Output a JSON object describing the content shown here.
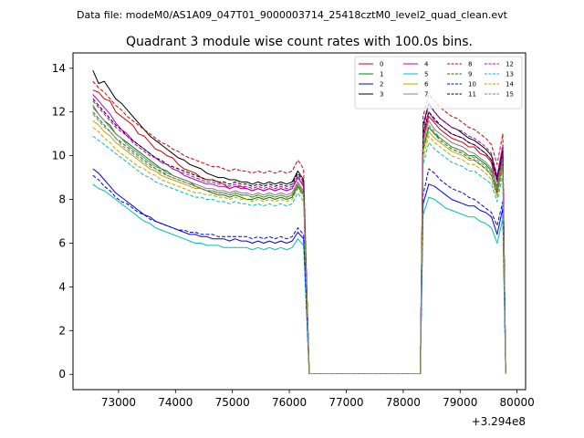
{
  "suptitle": "Data file: modeM0/AS1A09_047T01_9000003714_25418cztM0_level2_quad_clean.evt",
  "chart_data": {
    "type": "line",
    "title": "Quadrant 3 module wise count rates with 100.0s bins.",
    "xlabel": "",
    "ylabel": "",
    "x_offset_label": "+3.294e8",
    "xlim": [
      72200,
      80150
    ],
    "ylim": [
      -0.7,
      14.7
    ],
    "xticks": [
      73000,
      74000,
      75000,
      76000,
      77000,
      78000,
      79000,
      80000
    ],
    "xtick_labels": [
      "73000",
      "74000",
      "75000",
      "76000",
      "77000",
      "78000",
      "79000",
      "80000"
    ],
    "yticks": [
      0,
      2,
      4,
      6,
      8,
      10,
      12,
      14
    ],
    "ytick_labels": [
      "0",
      "2",
      "4",
      "6",
      "8",
      "10",
      "12",
      "14"
    ],
    "legend_position": "top-right",
    "segments": [
      {
        "start": 72550,
        "step": 100,
        "count": 38
      },
      {
        "start": 78350,
        "step": 100,
        "count": 15
      }
    ],
    "gap": {
      "x_start": 76350,
      "x_end": 78300,
      "value": 0.03
    },
    "series": [
      {
        "name": "0",
        "color": "#d00000",
        "dash": "solid",
        "seg1": [
          13.0,
          12.9,
          12.6,
          12.5,
          12.0,
          11.8,
          11.6,
          11.4,
          11.0,
          10.9,
          10.6,
          10.3,
          10.2,
          10.0,
          9.9,
          9.6,
          9.4,
          9.3,
          9.2,
          9.0,
          8.9,
          8.9,
          8.8,
          8.7,
          8.5,
          8.6,
          8.6,
          8.5,
          8.4,
          8.5,
          8.4,
          8.5,
          8.4,
          8.5,
          8.4,
          8.5,
          9.0,
          8.6
        ],
        "seg2": [
          10.8,
          11.8,
          11.5,
          11.2,
          11.0,
          10.8,
          10.7,
          10.6,
          10.4,
          10.4,
          10.1,
          10.0,
          9.7,
          8.3,
          10.2
        ]
      },
      {
        "name": "1",
        "color": "#008000",
        "dash": "solid",
        "seg1": [
          12.3,
          11.9,
          11.6,
          11.4,
          11.0,
          10.8,
          10.6,
          10.4,
          10.2,
          10.0,
          9.8,
          9.6,
          9.4,
          9.3,
          9.1,
          9.0,
          8.9,
          8.8,
          8.6,
          8.5,
          8.4,
          8.3,
          8.2,
          8.2,
          8.1,
          8.2,
          8.1,
          8.0,
          8.0,
          8.1,
          8.0,
          8.1,
          8.0,
          8.1,
          8.0,
          8.1,
          8.6,
          8.2
        ],
        "seg2": [
          10.4,
          11.3,
          11.0,
          10.8,
          10.6,
          10.4,
          10.3,
          10.2,
          10.0,
          10.0,
          9.8,
          9.6,
          9.3,
          8.6,
          9.8
        ]
      },
      {
        "name": "2",
        "color": "#0000ee",
        "dash": "solid",
        "seg1": [
          9.4,
          9.2,
          8.9,
          8.6,
          8.3,
          8.1,
          7.9,
          7.7,
          7.5,
          7.3,
          7.2,
          7.0,
          6.9,
          6.8,
          6.7,
          6.6,
          6.5,
          6.4,
          6.4,
          6.3,
          6.3,
          6.2,
          6.2,
          6.2,
          6.1,
          6.2,
          6.1,
          6.1,
          6.0,
          6.1,
          6.0,
          6.1,
          6.0,
          6.1,
          6.0,
          6.1,
          6.5,
          6.2
        ],
        "seg2": [
          7.8,
          8.7,
          8.6,
          8.4,
          8.2,
          8.0,
          7.9,
          7.8,
          7.7,
          7.7,
          7.5,
          7.4,
          7.2,
          6.4,
          7.6
        ]
      },
      {
        "name": "3",
        "color": "#000000",
        "dash": "solid",
        "seg1": [
          13.9,
          13.3,
          13.4,
          13.0,
          12.6,
          12.4,
          12.1,
          11.8,
          11.5,
          11.2,
          10.9,
          10.7,
          10.5,
          10.3,
          10.1,
          9.9,
          9.8,
          9.6,
          9.5,
          9.4,
          9.2,
          9.1,
          9.0,
          9.0,
          8.9,
          8.9,
          8.8,
          8.8,
          8.7,
          8.8,
          8.7,
          8.8,
          8.7,
          8.8,
          8.7,
          8.8,
          9.3,
          8.9
        ],
        "seg2": [
          11.4,
          12.4,
          12.0,
          11.7,
          11.5,
          11.3,
          11.2,
          11.0,
          10.8,
          10.7,
          10.5,
          10.3,
          10.0,
          9.0,
          10.4
        ]
      },
      {
        "name": "4",
        "color": "#bf00bf",
        "dash": "solid",
        "seg1": [
          12.8,
          12.5,
          12.2,
          11.9,
          11.5,
          11.2,
          11.0,
          10.7,
          10.5,
          10.3,
          10.1,
          9.9,
          9.7,
          9.6,
          9.4,
          9.3,
          9.1,
          9.0,
          8.9,
          8.8,
          8.7,
          8.7,
          8.6,
          8.6,
          8.5,
          8.6,
          8.5,
          8.5,
          8.4,
          8.5,
          8.4,
          8.5,
          8.4,
          8.5,
          8.4,
          8.5,
          9.0,
          8.6
        ],
        "seg2": [
          11.0,
          12.0,
          11.6,
          11.4,
          11.2,
          11.0,
          10.9,
          10.8,
          10.6,
          10.5,
          10.3,
          10.1,
          9.8,
          8.8,
          10.2
        ]
      },
      {
        "name": "5",
        "color": "#00bfbf",
        "dash": "solid",
        "seg1": [
          8.7,
          8.5,
          8.4,
          8.2,
          8.0,
          7.8,
          7.6,
          7.4,
          7.2,
          7.0,
          6.9,
          6.7,
          6.6,
          6.5,
          6.4,
          6.3,
          6.2,
          6.1,
          6.0,
          6.0,
          5.9,
          5.9,
          5.9,
          5.8,
          5.8,
          5.8,
          5.8,
          5.8,
          5.7,
          5.8,
          5.7,
          5.8,
          5.7,
          5.8,
          5.7,
          5.8,
          6.2,
          5.9
        ],
        "seg2": [
          7.3,
          8.1,
          8.0,
          7.8,
          7.6,
          7.5,
          7.4,
          7.3,
          7.2,
          7.2,
          7.0,
          6.9,
          6.7,
          6.0,
          7.1
        ]
      },
      {
        "name": "6",
        "color": "#c8a000",
        "dash": "solid",
        "seg1": [
          11.6,
          11.4,
          11.1,
          10.9,
          10.6,
          10.4,
          10.2,
          10.0,
          9.8,
          9.6,
          9.4,
          9.3,
          9.1,
          9.0,
          8.9,
          8.8,
          8.7,
          8.6,
          8.5,
          8.5,
          8.4,
          8.4,
          8.3,
          8.3,
          8.2,
          8.3,
          8.2,
          8.2,
          8.1,
          8.2,
          8.1,
          8.2,
          8.1,
          8.2,
          8.1,
          8.2,
          8.7,
          8.3
        ],
        "seg2": [
          10.2,
          11.1,
          10.8,
          10.6,
          10.4,
          10.2,
          10.1,
          10.0,
          9.8,
          9.8,
          9.6,
          9.4,
          9.1,
          8.2,
          9.5
        ]
      },
      {
        "name": "7",
        "color": "#808080",
        "dash": "solid",
        "seg1": [
          12.2,
          11.9,
          11.6,
          11.3,
          11.0,
          10.8,
          10.5,
          10.3,
          10.1,
          9.9,
          9.7,
          9.5,
          9.4,
          9.2,
          9.1,
          9.0,
          8.9,
          8.8,
          8.7,
          8.6,
          8.5,
          8.5,
          8.4,
          8.4,
          8.3,
          8.4,
          8.3,
          8.3,
          8.2,
          8.3,
          8.2,
          8.3,
          8.2,
          8.3,
          8.2,
          8.3,
          8.8,
          8.4
        ],
        "seg2": [
          10.6,
          11.6,
          11.2,
          11.0,
          10.8,
          10.6,
          10.5,
          10.4,
          10.2,
          10.1,
          9.9,
          9.7,
          9.4,
          8.5,
          9.8
        ]
      },
      {
        "name": "8",
        "color": "#d00000",
        "dash": "dashed",
        "seg1": [
          13.4,
          13.1,
          12.9,
          12.6,
          12.3,
          12.1,
          11.8,
          11.6,
          11.4,
          11.2,
          11.0,
          10.8,
          10.6,
          10.5,
          10.3,
          10.2,
          10.0,
          9.9,
          9.8,
          9.7,
          9.6,
          9.5,
          9.5,
          9.4,
          9.3,
          9.4,
          9.3,
          9.3,
          9.2,
          9.3,
          9.2,
          9.3,
          9.2,
          9.3,
          9.2,
          9.3,
          9.8,
          9.4
        ],
        "seg2": [
          11.8,
          12.8,
          12.5,
          12.2,
          12.0,
          11.8,
          11.7,
          11.5,
          11.3,
          11.2,
          11.0,
          10.8,
          10.5,
          9.6,
          11.0
        ]
      },
      {
        "name": "9",
        "color": "#008000",
        "dash": "dashed",
        "seg1": [
          12.0,
          11.7,
          11.4,
          11.1,
          10.8,
          10.6,
          10.4,
          10.2,
          10.0,
          9.8,
          9.6,
          9.4,
          9.3,
          9.1,
          9.0,
          8.9,
          8.8,
          8.7,
          8.6,
          8.5,
          8.4,
          8.4,
          8.3,
          8.3,
          8.2,
          8.3,
          8.2,
          8.2,
          8.1,
          8.2,
          8.1,
          8.2,
          8.1,
          8.2,
          8.1,
          8.2,
          8.7,
          8.3
        ],
        "seg2": [
          10.3,
          11.3,
          11.0,
          10.7,
          10.5,
          10.3,
          10.2,
          10.1,
          9.9,
          9.8,
          9.6,
          9.4,
          9.1,
          8.3,
          9.6
        ]
      },
      {
        "name": "10",
        "color": "#0000ee",
        "dash": "dashed",
        "seg1": [
          9.1,
          8.9,
          8.6,
          8.4,
          8.1,
          7.9,
          7.8,
          7.6,
          7.4,
          7.3,
          7.1,
          7.0,
          6.9,
          6.8,
          6.7,
          6.6,
          6.6,
          6.5,
          6.5,
          6.4,
          6.4,
          6.4,
          6.3,
          6.3,
          6.3,
          6.3,
          6.3,
          6.3,
          6.2,
          6.3,
          6.2,
          6.3,
          6.2,
          6.3,
          6.2,
          6.3,
          6.7,
          6.4
        ],
        "seg2": [
          8.2,
          9.4,
          9.2,
          8.9,
          8.7,
          8.5,
          8.4,
          8.3,
          8.1,
          8.0,
          7.8,
          7.6,
          7.4,
          6.8,
          7.9
        ]
      },
      {
        "name": "11",
        "color": "#000000",
        "dash": "dashed",
        "seg1": [
          12.6,
          12.3,
          12.0,
          11.7,
          11.4,
          11.2,
          10.9,
          10.7,
          10.5,
          10.3,
          10.1,
          9.9,
          9.8,
          9.6,
          9.5,
          9.4,
          9.3,
          9.2,
          9.1,
          9.0,
          8.9,
          8.9,
          8.8,
          8.8,
          8.7,
          8.8,
          8.7,
          8.7,
          8.6,
          8.7,
          8.6,
          8.7,
          8.6,
          8.7,
          8.6,
          8.7,
          9.2,
          8.8
        ],
        "seg2": [
          11.0,
          12.0,
          11.7,
          11.4,
          11.2,
          11.0,
          10.9,
          10.8,
          10.6,
          10.5,
          10.3,
          10.1,
          9.8,
          8.9,
          10.3
        ]
      },
      {
        "name": "12",
        "color": "#bf00bf",
        "dash": "dashed",
        "seg1": [
          12.5,
          12.2,
          11.9,
          11.6,
          11.3,
          11.1,
          10.9,
          10.6,
          10.4,
          10.2,
          10.0,
          9.9,
          9.7,
          9.6,
          9.4,
          9.3,
          9.2,
          9.1,
          9.0,
          8.9,
          8.8,
          8.8,
          8.7,
          8.7,
          8.6,
          8.7,
          8.6,
          8.6,
          8.5,
          8.6,
          8.5,
          8.6,
          8.5,
          8.6,
          8.5,
          8.6,
          9.1,
          8.7
        ],
        "seg2": [
          11.2,
          12.3,
          12.0,
          11.7,
          11.5,
          11.3,
          11.2,
          11.1,
          10.9,
          10.8,
          10.6,
          10.4,
          10.1,
          9.1,
          10.5
        ]
      },
      {
        "name": "13",
        "color": "#00bfbf",
        "dash": "dashed",
        "seg1": [
          10.9,
          10.7,
          10.5,
          10.3,
          10.1,
          9.9,
          9.7,
          9.5,
          9.3,
          9.1,
          9.0,
          8.8,
          8.7,
          8.6,
          8.5,
          8.4,
          8.3,
          8.2,
          8.1,
          8.1,
          8.0,
          8.0,
          7.9,
          7.9,
          7.8,
          7.9,
          7.8,
          7.8,
          7.7,
          7.8,
          7.7,
          7.8,
          7.7,
          7.8,
          7.7,
          7.8,
          8.3,
          7.9
        ],
        "seg2": [
          9.6,
          10.6,
          10.3,
          10.1,
          9.9,
          9.7,
          9.6,
          9.5,
          9.3,
          9.3,
          9.1,
          8.9,
          8.7,
          7.9,
          9.1
        ]
      },
      {
        "name": "14",
        "color": "#c8a000",
        "dash": "dashed",
        "seg1": [
          11.3,
          11.1,
          10.8,
          10.6,
          10.3,
          10.1,
          9.9,
          9.7,
          9.5,
          9.4,
          9.2,
          9.1,
          8.9,
          8.8,
          8.7,
          8.6,
          8.5,
          8.4,
          8.3,
          8.3,
          8.2,
          8.2,
          8.1,
          8.1,
          8.0,
          8.1,
          8.0,
          8.0,
          7.9,
          8.0,
          7.9,
          8.0,
          7.9,
          8.0,
          7.9,
          8.0,
          8.5,
          8.1
        ],
        "seg2": [
          9.9,
          10.9,
          10.6,
          10.4,
          10.2,
          10.0,
          9.9,
          9.8,
          9.6,
          9.6,
          9.4,
          9.2,
          8.9,
          8.1,
          9.4
        ]
      },
      {
        "name": "15",
        "color": "#808080",
        "dash": "dashed",
        "seg1": [
          11.9,
          11.6,
          11.3,
          11.1,
          10.8,
          10.5,
          10.3,
          10.1,
          9.9,
          9.7,
          9.5,
          9.4,
          9.2,
          9.1,
          9.0,
          8.9,
          8.8,
          8.7,
          8.6,
          8.5,
          8.4,
          8.4,
          8.3,
          8.3,
          8.2,
          8.3,
          8.2,
          8.2,
          8.1,
          8.2,
          8.1,
          8.2,
          8.1,
          8.2,
          8.1,
          8.2,
          8.7,
          8.3
        ],
        "seg2": [
          10.4,
          11.4,
          11.1,
          10.8,
          10.6,
          10.4,
          10.3,
          10.2,
          10.0,
          9.9,
          9.7,
          9.5,
          9.2,
          8.4,
          9.7
        ]
      }
    ]
  }
}
